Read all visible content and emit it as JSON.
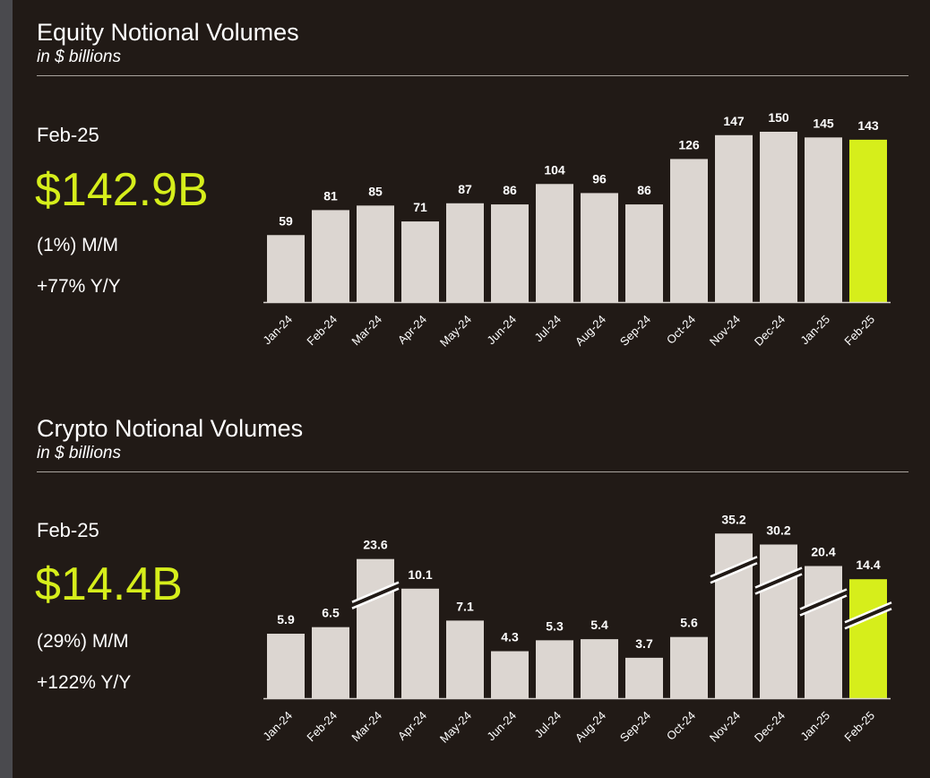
{
  "colors": {
    "background": "#211a16",
    "bar": "#dcd6d1",
    "highlight": "#d6ee1b",
    "text": "#ffffff"
  },
  "equity": {
    "title": "Equity Notional Volumes",
    "subtitle": "in $ billions",
    "period": "Feb-25",
    "value": "$142.9B",
    "mom": "(1%) M/M",
    "yoy": "+77% Y/Y"
  },
  "crypto": {
    "title": "Crypto Notional Volumes",
    "subtitle": "in $ billions",
    "period": "Feb-25",
    "value": "$14.4B",
    "mom": "(29%) M/M",
    "yoy": "+122% Y/Y"
  },
  "chart_data": [
    {
      "type": "bar",
      "title": "Equity Notional Volumes",
      "subtitle": "in $ billions",
      "categories": [
        "Jan-24",
        "Feb-24",
        "Mar-24",
        "Apr-24",
        "May-24",
        "Jun-24",
        "Jul-24",
        "Aug-24",
        "Sep-24",
        "Oct-24",
        "Nov-24",
        "Dec-24",
        "Jan-25",
        "Feb-25"
      ],
      "values": [
        59,
        81,
        85,
        71,
        87,
        86,
        104,
        96,
        86,
        126,
        147,
        150,
        145,
        143
      ],
      "labels": [
        "59",
        "81",
        "85",
        "71",
        "87",
        "86",
        "104",
        "96",
        "86",
        "126",
        "147",
        "150",
        "145",
        "143"
      ],
      "highlight_index": 13,
      "ylim": [
        0,
        150
      ],
      "grid": false,
      "legend": "none"
    },
    {
      "type": "bar",
      "title": "Crypto Notional Volumes",
      "subtitle": "in $ billions",
      "categories": [
        "Jan-24",
        "Feb-24",
        "Mar-24",
        "Apr-24",
        "May-24",
        "Jun-24",
        "Jul-24",
        "Aug-24",
        "Sep-24",
        "Oct-24",
        "Nov-24",
        "Dec-24",
        "Jan-25",
        "Feb-25"
      ],
      "values": [
        5.9,
        6.5,
        23.6,
        10.1,
        7.1,
        4.3,
        5.3,
        5.4,
        3.7,
        5.6,
        35.2,
        30.2,
        20.4,
        14.4
      ],
      "labels": [
        "5.9",
        "6.5",
        "23.6",
        "10.1",
        "7.1",
        "4.3",
        "5.3",
        "5.4",
        "3.7",
        "5.6",
        "35.2",
        "30.2",
        "20.4",
        "14.4"
      ],
      "broken_axis_indices": [
        2,
        10,
        11,
        12,
        13
      ],
      "highlight_index": 13,
      "grid": false,
      "legend": "none"
    }
  ]
}
